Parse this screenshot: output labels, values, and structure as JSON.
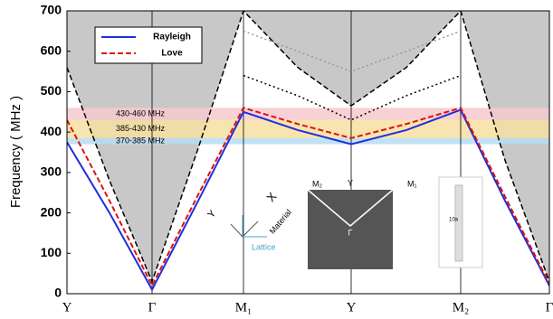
{
  "chart_data": {
    "type": "line",
    "ylabel": "Frequency ( MHz )",
    "x": [
      0,
      0.47,
      0.94,
      1.45,
      1.95,
      2.55,
      3.14,
      3.75,
      4.35,
      4.84,
      5.33
    ],
    "xlim": [
      0,
      5.33
    ],
    "xticks": [
      {
        "value": 0,
        "label": "Y"
      },
      {
        "value": 0.94,
        "label": "Γ"
      },
      {
        "value": 1.95,
        "label": "M₁"
      },
      {
        "value": 3.14,
        "label": "Y"
      },
      {
        "value": 4.35,
        "label": "M₂"
      },
      {
        "value": 5.33,
        "label": "Γ"
      }
    ],
    "ylim": [
      0,
      700
    ],
    "yticks": [
      0,
      100,
      200,
      300,
      400,
      500,
      600,
      700
    ],
    "series": [
      {
        "color": "#000000",
        "dash": "6 3",
        "fill": "#c8c8c8",
        "values": [
          560,
          280,
          30,
          360,
          700,
          560,
          465,
          560,
          700,
          330,
          30
        ]
      },
      {
        "color": "#999999",
        "dash": "2 3",
        "values": [
          null,
          null,
          null,
          null,
          650,
          600,
          550,
          600,
          650,
          null,
          null
        ]
      },
      {
        "color": "#000000",
        "dash": "2 3",
        "values": [
          null,
          null,
          null,
          null,
          540,
          490,
          430,
          490,
          540,
          null,
          null
        ]
      },
      {
        "name": "Rayleigh",
        "color": "#1f2fd8",
        "dash": "",
        "values": [
          375,
          200,
          10,
          230,
          450,
          405,
          370,
          405,
          455,
          230,
          20
        ]
      },
      {
        "name": "Love",
        "color": "#e01010",
        "dash": "6 3",
        "values": [
          430,
          230,
          20,
          245,
          460,
          420,
          385,
          420,
          460,
          240,
          25
        ]
      }
    ],
    "bands": [
      {
        "label": "430-460 MHz",
        "range": [
          430,
          460
        ],
        "color": "#f6c9cf"
      },
      {
        "label": "385-430 MHz",
        "range": [
          385,
          430
        ],
        "color": "#f7dfa0"
      },
      {
        "label": "370-385 MHz",
        "range": [
          370,
          385
        ],
        "color": "#b6dcf2"
      }
    ],
    "inset": {
      "bz_labels": [
        "M₂",
        "Y",
        "M₁",
        "Γ"
      ],
      "axes_labels": [
        "X",
        "Y",
        "Material",
        "Lattice"
      ],
      "device_label": "10a"
    }
  }
}
